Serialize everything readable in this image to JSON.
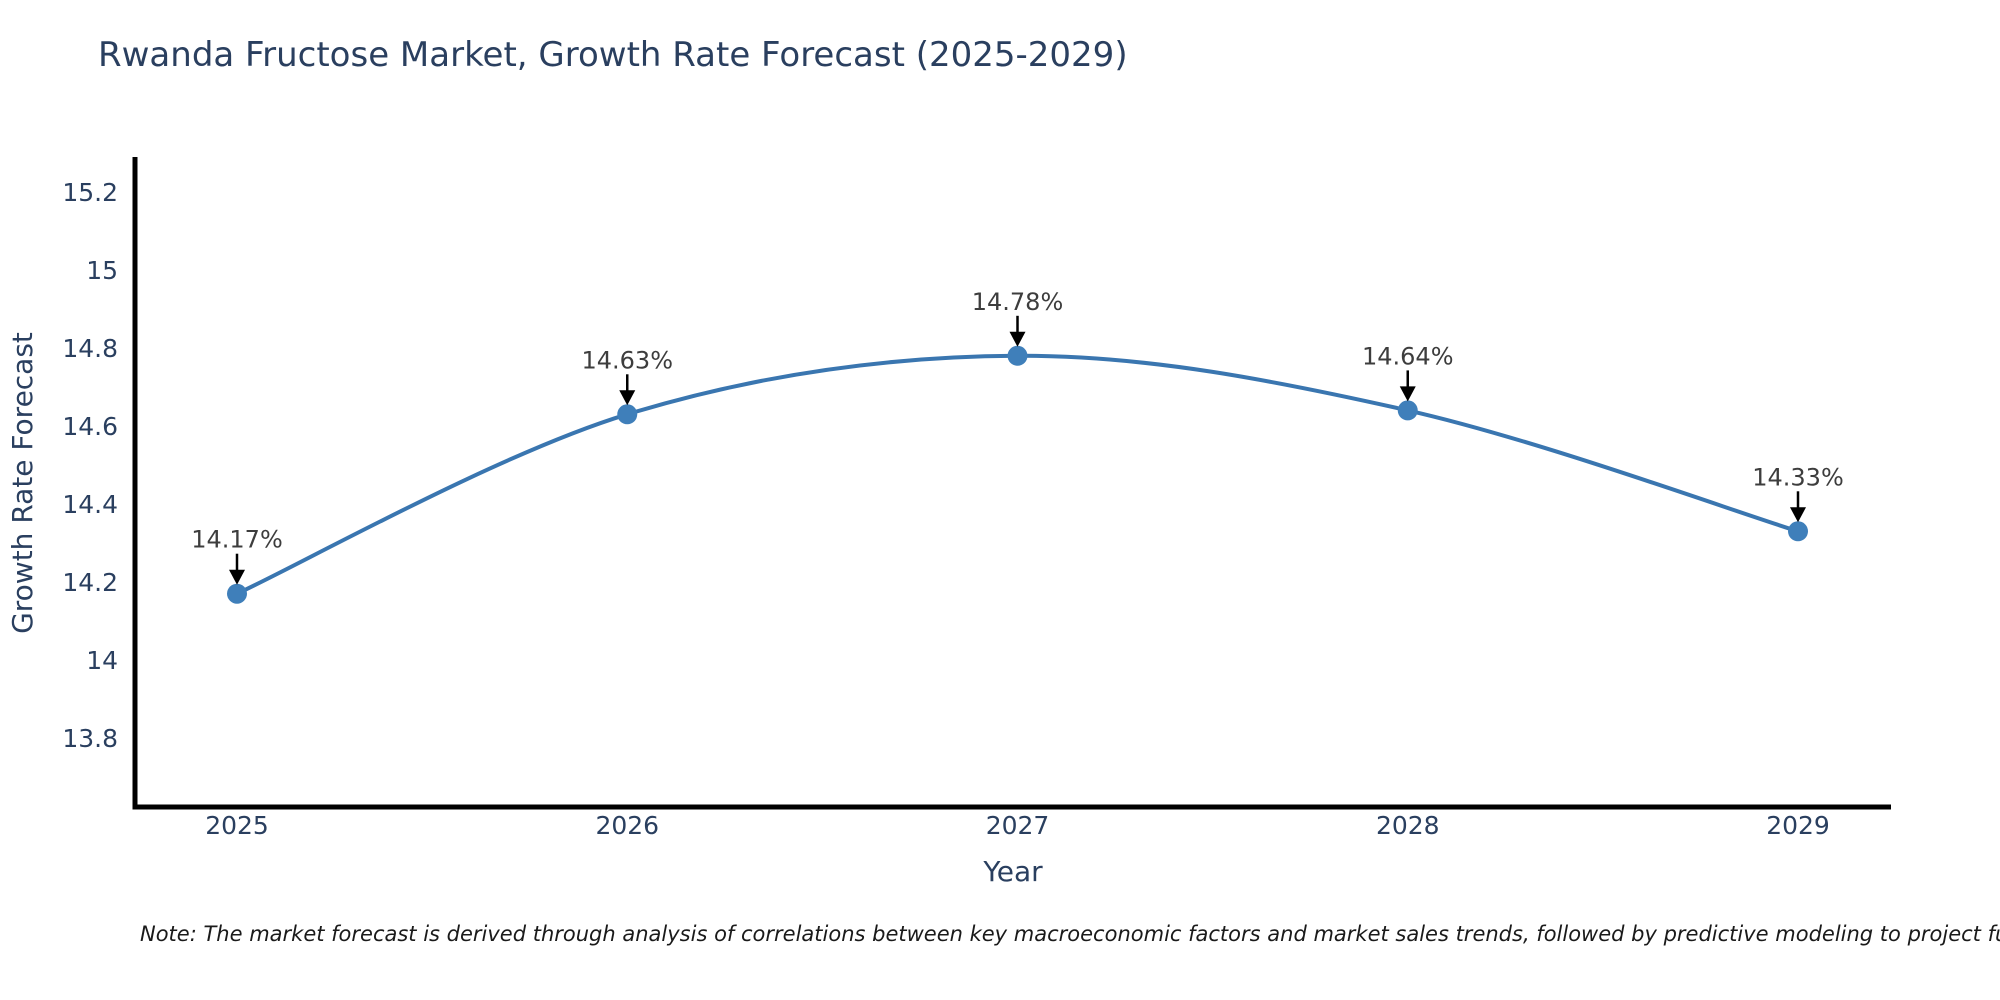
{
  "page": {
    "note": "Note: The market forecast is derived through analysis of correlations between key macroeconomic factors and market sales trends, followed by predictive modeling to project future sal"
  },
  "chart_data": {
    "type": "line",
    "line_shape": "spline",
    "title": "Rwanda Fructose Market, Growth Rate Forecast (2025-2029)",
    "xlabel": "Year",
    "ylabel": "Growth Rate Forecast",
    "categories": [
      "2025",
      "2026",
      "2027",
      "2028",
      "2029"
    ],
    "series": [
      {
        "name": "Growth Rate Forecast",
        "values": [
          14.17,
          14.63,
          14.78,
          14.64,
          14.33
        ],
        "data_labels": [
          "14.17%",
          "14.63%",
          "14.78%",
          "14.64%",
          "14.33%"
        ]
      }
    ],
    "yticks": [
      {
        "value": 15.2,
        "label": "15.2"
      },
      {
        "value": 15.0,
        "label": "15"
      },
      {
        "value": 14.8,
        "label": "14.8"
      },
      {
        "value": 14.6,
        "label": "14.6"
      },
      {
        "value": 14.4,
        "label": "14.4"
      },
      {
        "value": 14.2,
        "label": "14.2"
      },
      {
        "value": 14.0,
        "label": "14"
      },
      {
        "value": 13.8,
        "label": "13.8"
      }
    ],
    "ylim": [
      13.62,
      15.28
    ],
    "grid": false,
    "legend_position": "none",
    "annotation_style": "arrow-down-to-point",
    "colors": {
      "text": "#2a3f5f",
      "axis": "#000000",
      "line": "#3a76b0",
      "marker": "#3f7fba",
      "data_label": "#3d3d3d",
      "annotation_arrow": "#000000",
      "note": "#1a1a1a"
    }
  }
}
